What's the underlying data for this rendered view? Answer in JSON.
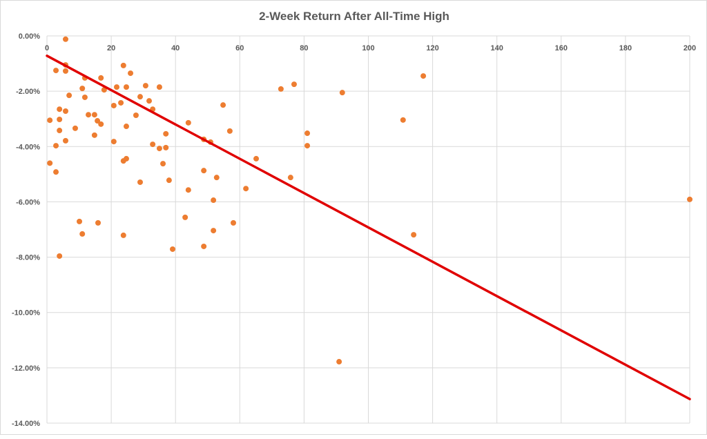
{
  "chart_data": {
    "type": "scatter",
    "title": "2-Week Return After All-Time High",
    "xlabel": "",
    "ylabel": "",
    "xlim": [
      0,
      200
    ],
    "ylim": [
      -14,
      0
    ],
    "x_ticks": [
      "0",
      "20",
      "40",
      "60",
      "80",
      "100",
      "120",
      "140",
      "160",
      "180",
      "200"
    ],
    "x_tick_values": [
      0,
      20,
      40,
      60,
      80,
      100,
      120,
      140,
      160,
      180,
      200
    ],
    "y_ticks": [
      "0.00%",
      "-2.00%",
      "-4.00%",
      "-6.00%",
      "-8.00%",
      "-10.00%",
      "-12.00%",
      "-14.00%"
    ],
    "y_tick_values": [
      0,
      -2,
      -4,
      -6,
      -8,
      -10,
      -12,
      -14
    ],
    "grid": true,
    "legend": "none",
    "point_color": "#ED7D31",
    "trendline_color": "#E00000",
    "trendline": {
      "x": [
        0,
        200
      ],
      "y": [
        -0.72,
        -13.13
      ]
    },
    "points": [
      [
        0.9,
        -3.05
      ],
      [
        0.9,
        -4.6
      ],
      [
        2.8,
        -1.25
      ],
      [
        2.8,
        -3.97
      ],
      [
        2.8,
        -4.92
      ],
      [
        3.9,
        -2.65
      ],
      [
        3.9,
        -3.02
      ],
      [
        3.9,
        -3.42
      ],
      [
        3.9,
        -7.96
      ],
      [
        5.8,
        -0.12
      ],
      [
        5.8,
        -1.05
      ],
      [
        5.8,
        -1.27
      ],
      [
        5.8,
        -2.72
      ],
      [
        5.8,
        -3.79
      ],
      [
        6.9,
        -2.15
      ],
      [
        8.8,
        -3.34
      ],
      [
        10.1,
        -6.71
      ],
      [
        11,
        -1.9
      ],
      [
        11,
        -7.16
      ],
      [
        11.8,
        -1.52
      ],
      [
        11.8,
        -2.22
      ],
      [
        12.9,
        -2.85
      ],
      [
        14.8,
        -2.85
      ],
      [
        14.8,
        -3.59
      ],
      [
        15.7,
        -3.07
      ],
      [
        15.9,
        -6.76
      ],
      [
        16.8,
        -3.19
      ],
      [
        16.8,
        -1.52
      ],
      [
        17.8,
        -1.95
      ],
      [
        20.8,
        -2.52
      ],
      [
        20.8,
        -3.82
      ],
      [
        21.7,
        -1.85
      ],
      [
        23,
        -2.42
      ],
      [
        23.8,
        -1.07
      ],
      [
        23.8,
        -4.52
      ],
      [
        24.7,
        -4.44
      ],
      [
        23.8,
        -7.21
      ],
      [
        24.7,
        -1.85
      ],
      [
        24.7,
        -3.27
      ],
      [
        26,
        -1.35
      ],
      [
        27.7,
        -2.87
      ],
      [
        29,
        -5.29
      ],
      [
        29,
        -2.2
      ],
      [
        30.7,
        -1.8
      ],
      [
        31.8,
        -2.35
      ],
      [
        32.9,
        -2.65
      ],
      [
        32.9,
        -3.92
      ],
      [
        35,
        -1.85
      ],
      [
        35,
        -4.07
      ],
      [
        36.1,
        -4.62
      ],
      [
        37,
        -4.04
      ],
      [
        37,
        -3.54
      ],
      [
        38,
        -5.22
      ],
      [
        39.1,
        -7.71
      ],
      [
        43,
        -6.56
      ],
      [
        44,
        -3.14
      ],
      [
        44,
        -5.57
      ],
      [
        48.8,
        -3.74
      ],
      [
        48.8,
        -4.87
      ],
      [
        48.8,
        -7.61
      ],
      [
        50.9,
        -3.84
      ],
      [
        51.8,
        -5.94
      ],
      [
        51.8,
        -7.04
      ],
      [
        52.8,
        -5.12
      ],
      [
        54.8,
        -2.5
      ],
      [
        56.9,
        -3.44
      ],
      [
        58,
        -6.76
      ],
      [
        61.9,
        -5.52
      ],
      [
        65.1,
        -4.44
      ],
      [
        72.8,
        -1.92
      ],
      [
        75.8,
        -5.12
      ],
      [
        76.9,
        -1.75
      ],
      [
        81,
        -3.52
      ],
      [
        81,
        -3.97
      ],
      [
        90.9,
        -11.78
      ],
      [
        91.9,
        -2.05
      ],
      [
        110.8,
        -3.04
      ],
      [
        114.1,
        -7.19
      ],
      [
        117.1,
        -1.45
      ],
      [
        200,
        -5.91
      ]
    ]
  }
}
